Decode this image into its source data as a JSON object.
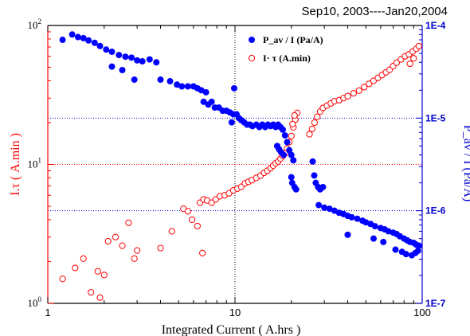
{
  "chart_data": {
    "type": "scatter",
    "title": "Sep10, 2003----Jan20,2004",
    "xlabel": "Integrated Current ( A.hrs )",
    "ylabel_left": "I.τ ( A.min )",
    "ylabel_right": "P_av / I (Pa/A)",
    "x_scale": "log",
    "y_left_scale": "log",
    "y_right_scale": "log",
    "xlim": [
      1,
      100
    ],
    "ylim_left": [
      1,
      100
    ],
    "ylim_right": [
      1e-07,
      0.0001
    ],
    "x_ticks": [
      "1",
      "10",
      "100"
    ],
    "y_left_ticks": [
      "10",
      "10",
      "10"
    ],
    "y_left_tick_exponents": [
      "0",
      "1",
      "2"
    ],
    "y_right_ticks": [
      "1E-7",
      "1E-6",
      "1E-5",
      "1E-4"
    ],
    "gridlines": {
      "vertical_x": 10,
      "horizontal_left_y": 10,
      "horizontal_right_y": [
        1e-06,
        1e-05
      ]
    },
    "legend_position": "top-right",
    "colors": {
      "left_axis": "#ff0000",
      "right_axis": "#0000cc",
      "red_series": "#ff0000",
      "blue_series": "#0000ff"
    },
    "series": [
      {
        "name": "P_av / I (Pa/A)",
        "axis": "right",
        "marker": "filled-circle",
        "color": "#0000ff",
        "points": [
          [
            1.2,
            7e-05
          ],
          [
            1.35,
            8e-05
          ],
          [
            1.45,
            7.5e-05
          ],
          [
            1.55,
            7.3e-05
          ],
          [
            1.65,
            6.9e-05
          ],
          [
            1.78,
            6.5e-05
          ],
          [
            1.9,
            6e-05
          ],
          [
            2.05,
            5.5e-05
          ],
          [
            2.2,
            5.2e-05
          ],
          [
            2.4,
            4.8e-05
          ],
          [
            2.6,
            4.6e-05
          ],
          [
            2.8,
            4.5e-05
          ],
          [
            3.0,
            4.2e-05
          ],
          [
            3.2,
            4.1e-05
          ],
          [
            3.5,
            4.3e-05
          ],
          [
            3.8,
            4e-05
          ],
          [
            2.2,
            3.6e-05
          ],
          [
            2.5,
            3.3e-05
          ],
          [
            2.9,
            2.6e-05
          ],
          [
            4.0,
            2.6e-05
          ],
          [
            4.5,
            2.5e-05
          ],
          [
            4.9,
            2.3e-05
          ],
          [
            5.2,
            2.2e-05
          ],
          [
            5.6,
            2.2e-05
          ],
          [
            6.0,
            2.2e-05
          ],
          [
            6.3,
            2.1e-05
          ],
          [
            6.6,
            2e-05
          ],
          [
            7.0,
            1.9e-05
          ],
          [
            6.8,
            1.5e-05
          ],
          [
            7.2,
            1.4e-05
          ],
          [
            7.5,
            1.5e-05
          ],
          [
            7.8,
            1.3e-05
          ],
          [
            8.2,
            1.3e-05
          ],
          [
            8.6,
            1.2e-05
          ],
          [
            9.0,
            1.2e-05
          ],
          [
            9.4,
            1.15e-05
          ],
          [
            9.8,
            1.1e-05
          ],
          [
            10.2,
            1.1e-05
          ],
          [
            10.5,
            1e-05
          ],
          [
            10.8,
            9.5e-06
          ],
          [
            9.9,
            2.1e-05
          ],
          [
            9.6,
            9e-06
          ],
          [
            11.2,
            9e-06
          ],
          [
            11.6,
            8.5e-06
          ],
          [
            12.0,
            8.5e-06
          ],
          [
            12.4,
            8.2e-06
          ],
          [
            13.0,
            8.5e-06
          ],
          [
            13.5,
            8e-06
          ],
          [
            14.0,
            8.5e-06
          ],
          [
            14.5,
            8e-06
          ],
          [
            15.0,
            8.5e-06
          ],
          [
            15.5,
            8.2e-06
          ],
          [
            16.0,
            8.5e-06
          ],
          [
            16.5,
            8e-06
          ],
          [
            17.0,
            8.5e-06
          ],
          [
            17.5,
            8e-06
          ],
          [
            18.0,
            7.5e-06
          ],
          [
            18.5,
            6.5e-06
          ],
          [
            19.0,
            5.5e-06
          ],
          [
            19.5,
            4.5e-06
          ],
          [
            20.0,
            4e-06
          ],
          [
            20.5,
            3.5e-06
          ],
          [
            16.8,
            5e-06
          ],
          [
            17.2,
            4.6e-06
          ],
          [
            17.6,
            4.3e-06
          ],
          [
            18.2,
            4e-06
          ],
          [
            20.2,
            2e-06
          ],
          [
            20.8,
            1.8e-06
          ],
          [
            21.2,
            1.7e-06
          ],
          [
            20.0,
            2.3e-06
          ],
          [
            26.0,
            3.4e-06
          ],
          [
            26.5,
            2.4e-06
          ],
          [
            27.0,
            2e-06
          ],
          [
            27.8,
            1.8e-06
          ],
          [
            28.5,
            1.7e-06
          ],
          [
            29.5,
            1.8e-06
          ],
          [
            28.0,
            1.15e-06
          ],
          [
            30.0,
            1.08e-06
          ],
          [
            32.0,
            1.05e-06
          ],
          [
            34.0,
            1e-06
          ],
          [
            36.0,
            9.5e-07
          ],
          [
            38.0,
            9.2e-07
          ],
          [
            40.0,
            8.8e-07
          ],
          [
            42.0,
            8.5e-07
          ],
          [
            45.0,
            8.2e-07
          ],
          [
            48.0,
            7.8e-07
          ],
          [
            50.0,
            7.5e-07
          ],
          [
            53.0,
            7.2e-07
          ],
          [
            56.0,
            6.8e-07
          ],
          [
            60.0,
            6.5e-07
          ],
          [
            63.0,
            6.3e-07
          ],
          [
            66.0,
            6e-07
          ],
          [
            70.0,
            5.8e-07
          ],
          [
            73.0,
            5.6e-07
          ],
          [
            76.0,
            5.3e-07
          ],
          [
            80.0,
            5e-07
          ],
          [
            83.0,
            4.8e-07
          ],
          [
            86.0,
            4.6e-07
          ],
          [
            90.0,
            4.5e-07
          ],
          [
            93.0,
            4.3e-07
          ],
          [
            96.0,
            4.2e-07
          ],
          [
            40.0,
            5.5e-07
          ],
          [
            55.0,
            5e-07
          ],
          [
            62.0,
            4.6e-07
          ],
          [
            72.0,
            3.8e-07
          ],
          [
            78.0,
            3.6e-07
          ],
          [
            82.0,
            3.4e-07
          ],
          [
            88.0,
            3.3e-07
          ],
          [
            92.0,
            3.5e-07
          ],
          [
            95.0,
            3.7e-07
          ]
        ]
      },
      {
        "name": "I· τ (A.min)",
        "axis": "left",
        "marker": "open-circle",
        "color": "#ff0000",
        "points": [
          [
            1.2,
            1.5
          ],
          [
            1.4,
            1.8
          ],
          [
            1.55,
            2.1
          ],
          [
            1.7,
            1.2
          ],
          [
            1.85,
            1.7
          ],
          [
            1.9,
            1.1
          ],
          [
            2.0,
            1.6
          ],
          [
            2.1,
            2.8
          ],
          [
            2.3,
            3.0
          ],
          [
            2.5,
            2.6
          ],
          [
            2.7,
            3.8
          ],
          [
            2.9,
            2.1
          ],
          [
            3.0,
            2.4
          ],
          [
            4.0,
            2.5
          ],
          [
            4.6,
            3.3
          ],
          [
            5.3,
            4.8
          ],
          [
            5.6,
            4.6
          ],
          [
            5.9,
            4.0
          ],
          [
            6.3,
            3.6
          ],
          [
            6.7,
            2.3
          ],
          [
            6.5,
            5.3
          ],
          [
            6.8,
            5.6
          ],
          [
            7.1,
            5.5
          ],
          [
            7.5,
            5.3
          ],
          [
            7.9,
            5.6
          ],
          [
            8.3,
            5.9
          ],
          [
            8.8,
            6.0
          ],
          [
            9.3,
            6.2
          ],
          [
            9.8,
            6.5
          ],
          [
            10.3,
            6.7
          ],
          [
            10.8,
            6.9
          ],
          [
            11.3,
            7.3
          ],
          [
            11.8,
            7.5
          ],
          [
            12.3,
            7.7
          ],
          [
            13.0,
            8.0
          ],
          [
            13.7,
            8.3
          ],
          [
            14.3,
            8.7
          ],
          [
            14.9,
            9.0
          ],
          [
            15.5,
            9.4
          ],
          [
            16.0,
            9.8
          ],
          [
            16.5,
            10.2
          ],
          [
            17.0,
            10.5
          ],
          [
            17.5,
            11.0
          ],
          [
            18.0,
            11.5
          ],
          [
            18.5,
            12.0
          ],
          [
            19.0,
            13.0
          ],
          [
            19.5,
            14.5
          ],
          [
            20.0,
            16.0
          ],
          [
            20.5,
            18.5
          ],
          [
            21.0,
            21.0
          ],
          [
            21.5,
            23.5
          ],
          [
            20.3,
            19.5
          ],
          [
            20.8,
            22.5
          ],
          [
            25.0,
            16.5
          ],
          [
            25.8,
            18.0
          ],
          [
            26.6,
            20.0
          ],
          [
            27.5,
            22.0
          ],
          [
            28.5,
            24.0
          ],
          [
            29.5,
            25.5
          ],
          [
            31.0,
            26.5
          ],
          [
            32.5,
            27.5
          ],
          [
            34.0,
            28.5
          ],
          [
            36.0,
            29.0
          ],
          [
            38.0,
            30.0
          ],
          [
            40.0,
            31.0
          ],
          [
            43.0,
            32.5
          ],
          [
            46.0,
            34.0
          ],
          [
            49.0,
            36.0
          ],
          [
            52.0,
            38.0
          ],
          [
            55.0,
            40.0
          ],
          [
            58.0,
            42.0
          ],
          [
            61.0,
            44.0
          ],
          [
            64.0,
            46.0
          ],
          [
            67.0,
            48.0
          ],
          [
            70.0,
            51.0
          ],
          [
            73.0,
            54.0
          ],
          [
            77.0,
            57.0
          ],
          [
            81.0,
            60.0
          ],
          [
            85.0,
            62.0
          ],
          [
            89.0,
            65.0
          ],
          [
            93.0,
            68.0
          ],
          [
            96.0,
            71.0
          ],
          [
            90.0,
            58.0
          ],
          [
            86.0,
            53.0
          ]
        ]
      }
    ]
  }
}
